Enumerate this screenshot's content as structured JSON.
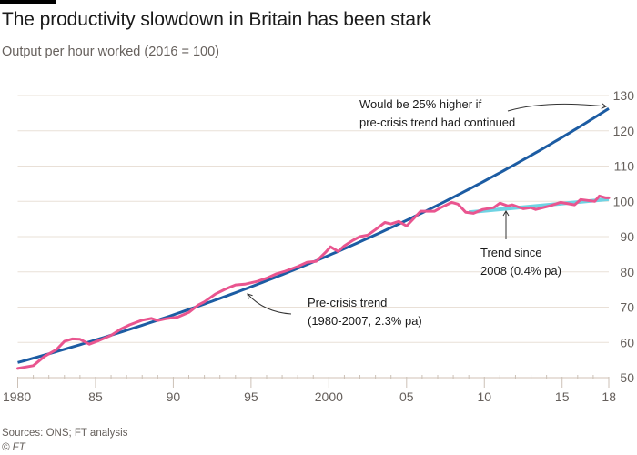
{
  "header": {
    "title": "The productivity slowdown in Britain has been stark",
    "subtitle": "Output per hour worked (2016 = 100)"
  },
  "footer": {
    "source": "Sources: ONS; FT analysis",
    "copyright": "© FT"
  },
  "chart_data": {
    "type": "line",
    "title": "The productivity slowdown in Britain has been stark",
    "subtitle": "Output per hour worked (2016 = 100)",
    "xlabel": "",
    "ylabel": "",
    "xlim": [
      1980,
      2018
    ],
    "ylim": [
      50,
      130
    ],
    "grid": true,
    "x_ticks": [
      {
        "value": 1980,
        "label": "1980"
      },
      {
        "value": 1985,
        "label": "85"
      },
      {
        "value": 1990,
        "label": "90"
      },
      {
        "value": 1995,
        "label": "95"
      },
      {
        "value": 2000,
        "label": "2000"
      },
      {
        "value": 2005,
        "label": "05"
      },
      {
        "value": 2010,
        "label": "10"
      },
      {
        "value": 2015,
        "label": "15"
      },
      {
        "value": 2018,
        "label": "18"
      }
    ],
    "y_ticks": [
      50,
      60,
      70,
      80,
      90,
      100,
      110,
      120,
      130
    ],
    "y_axis_side": "right",
    "series": [
      {
        "name": "Output per hour worked",
        "color": "#e9558f",
        "x": [
          1980.0,
          1981.0,
          1981.7,
          1982.5,
          1983.0,
          1983.5,
          1984.0,
          1984.6,
          1985.2,
          1986.0,
          1986.6,
          1987.2,
          1988.0,
          1988.6,
          1989.0,
          1989.5,
          1990.3,
          1991.0,
          1991.6,
          1992.0,
          1992.7,
          1993.3,
          1994.0,
          1994.6,
          1995.4,
          1996.0,
          1996.6,
          1997.2,
          1998.0,
          1998.6,
          1999.2,
          1999.8,
          2000.1,
          2000.6,
          2001.0,
          2001.5,
          2002.0,
          2002.5,
          2003.0,
          2003.6,
          2004.0,
          2004.5,
          2005.0,
          2005.9,
          2006.8,
          2007.2,
          2007.9,
          2008.3,
          2008.8,
          2009.3,
          2009.9,
          2010.6,
          2011.0,
          2011.5,
          2011.8,
          2012.5,
          2013.0,
          2013.3,
          2014.2,
          2014.9,
          2015.8,
          2016.2,
          2017.1,
          2017.4,
          2017.8,
          2018.0
        ],
        "y": [
          52.6,
          53.4,
          56.0,
          58.0,
          60.3,
          61.0,
          60.9,
          59.5,
          60.5,
          62.0,
          63.7,
          65.0,
          66.3,
          66.8,
          66.2,
          66.7,
          67.2,
          68.5,
          70.6,
          71.5,
          73.7,
          75.0,
          76.3,
          76.5,
          77.3,
          78.2,
          79.4,
          80.2,
          81.5,
          82.7,
          83.0,
          85.6,
          87.1,
          85.8,
          87.4,
          88.8,
          90.0,
          90.4,
          92.0,
          94.0,
          93.6,
          94.3,
          93.0,
          97.2,
          97.2,
          98.2,
          99.7,
          99.2,
          96.9,
          96.6,
          97.7,
          98.2,
          99.5,
          98.7,
          99.0,
          97.9,
          98.2,
          97.7,
          98.7,
          99.7,
          99.0,
          100.5,
          100.0,
          101.5,
          101.0,
          101.0
        ]
      },
      {
        "name": "Pre-crisis trend (1980-2007, 2.3% pa)",
        "color": "#1c5ca3",
        "kind": "exponential",
        "x_start": 1980,
        "x_end": 2018,
        "y_start": 54.3,
        "y_end": 126.3
      },
      {
        "name": "Trend since 2008 (0.4% pa)",
        "color": "#6fd3e3",
        "kind": "linear",
        "x_start": 2009.0,
        "x_end": 2018,
        "y_start": 96.9,
        "y_end": 100.6
      }
    ],
    "annotations": [
      {
        "name": "gap-annotation",
        "lines": [
          "Would be 25% higher if",
          "pre-crisis trend had continued"
        ],
        "target_x": 2018,
        "target_y": 127.5
      },
      {
        "name": "pre-crisis-annotation",
        "lines": [
          "Pre-crisis trend",
          "(1980-2007, 2.3% pa)"
        ],
        "target_x": 1995.4,
        "target_y": 77.0
      },
      {
        "name": "post-crisis-annotation",
        "lines": [
          "Trend since",
          "2008 (0.4% pa)"
        ],
        "target_x": 2011.4,
        "target_y": 97.8
      }
    ]
  }
}
